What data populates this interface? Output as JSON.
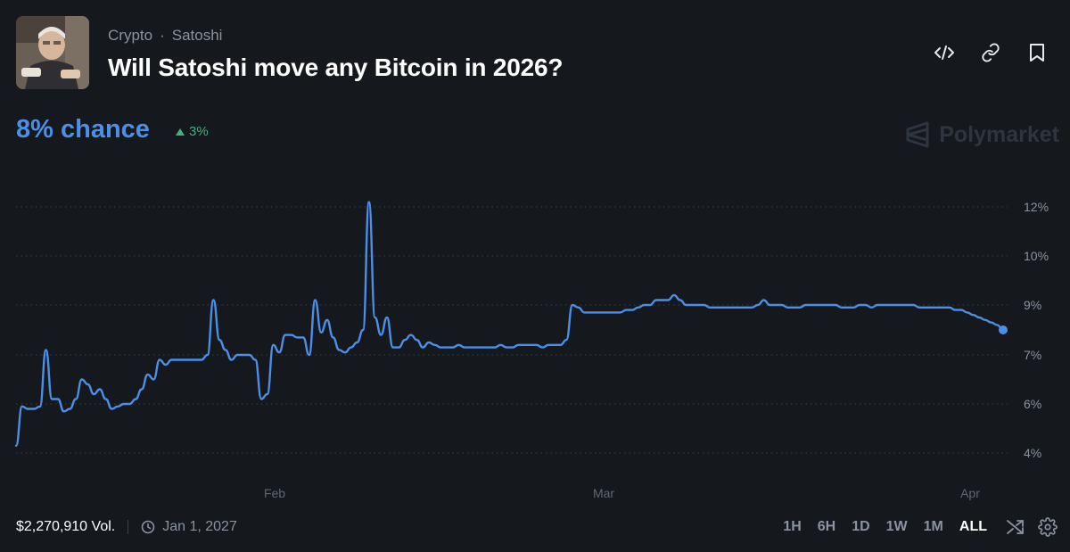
{
  "header": {
    "breadcrumb": [
      "Crypto",
      "Satoshi"
    ],
    "breadcrumb_sep": "·",
    "title": "Will Satoshi move any Bitcoin in 2026?",
    "actions": [
      "embed-icon",
      "link-icon",
      "bookmark-icon"
    ]
  },
  "summary": {
    "chance": "8% chance",
    "delta": "3%",
    "delta_direction": "up"
  },
  "brand": {
    "name": "Polymarket"
  },
  "footer": {
    "volume": "$2,270,910 Vol.",
    "end_date": "Jan 1, 2027",
    "ranges": [
      "1H",
      "6H",
      "1D",
      "1W",
      "1M",
      "ALL"
    ],
    "active_range": "ALL"
  },
  "colors": {
    "line": "#4c8fe8",
    "background": "#15181d",
    "up": "#3fb27f"
  },
  "chart_data": {
    "type": "line",
    "x_ticks": [
      "Feb",
      "Mar",
      "Apr"
    ],
    "y_ticks": [
      4,
      6,
      7,
      9,
      10,
      12
    ],
    "y_tick_labels": [
      "4%",
      "6%",
      "7%",
      "9%",
      "10%",
      "12%"
    ],
    "grid": "horizontal dotted",
    "series": [
      {
        "values": [
          4.3,
          5.9,
          5.8,
          5.8,
          5.9,
          7.2,
          6.1,
          6.1,
          5.7,
          5.8,
          6.1,
          6.5,
          6.4,
          6.2,
          6.3,
          6.1,
          5.8,
          5.9,
          6.0,
          6.0,
          6.1,
          6.3,
          6.6,
          6.5,
          6.9,
          6.8,
          6.9,
          6.9,
          6.9,
          6.9,
          6.9,
          6.9,
          7.0,
          9.1,
          7.6,
          7.2,
          6.9,
          7.0,
          7.0,
          7.0,
          6.9,
          6.1,
          6.2,
          7.4,
          7.1,
          7.8,
          7.8,
          7.7,
          7.7,
          7.0,
          9.1,
          7.9,
          8.4,
          7.7,
          7.2,
          7.1,
          7.3,
          7.5,
          8.0,
          12.2,
          8.5,
          7.8,
          8.5,
          7.3,
          7.3,
          7.6,
          7.8,
          7.6,
          7.3,
          7.5,
          7.4,
          7.3,
          7.3,
          7.3,
          7.4,
          7.3,
          7.3,
          7.3,
          7.3,
          7.3,
          7.3,
          7.4,
          7.3,
          7.3,
          7.4,
          7.4,
          7.4,
          7.4,
          7.3,
          7.4,
          7.4,
          7.4,
          7.6,
          9.0,
          8.9,
          8.7,
          8.7,
          8.7,
          8.7,
          8.7,
          8.7,
          8.7,
          8.8,
          8.8,
          8.9,
          9.0,
          9.0,
          9.1,
          9.1,
          9.1,
          9.2,
          9.1,
          9.0,
          9.0,
          9.0,
          9.0,
          8.9,
          8.9,
          8.9,
          8.9,
          8.9,
          8.9,
          8.9,
          8.9,
          9.0,
          9.1,
          9.0,
          9.0,
          9.0,
          8.9,
          8.9,
          8.9,
          9.0,
          9.0,
          9.0,
          9.0,
          9.0,
          9.0,
          8.9,
          8.9,
          8.9,
          9.0,
          9.0,
          8.9,
          9.0,
          9.0,
          9.0,
          9.0,
          9.0,
          9.0,
          9.0,
          8.9,
          8.9,
          8.9,
          8.9,
          8.9,
          8.9,
          8.8,
          8.8,
          8.7,
          8.6,
          8.5,
          8.4,
          8.3,
          8.2,
          8.0
        ]
      }
    ]
  }
}
